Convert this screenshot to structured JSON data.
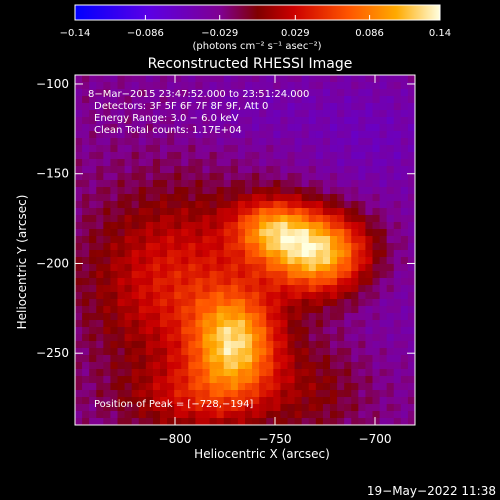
{
  "chart_data": {
    "type": "heatmap",
    "title": "Reconstructed RHESSI Image",
    "xlabel": "Heliocentric X (arcsec)",
    "ylabel": "Heliocentric Y (arcsec)",
    "xlim": [
      -850,
      -680
    ],
    "ylim": [
      -290,
      -95
    ],
    "xticks": [
      {
        "value": -800,
        "label": "−800"
      },
      {
        "value": -750,
        "label": "−750"
      },
      {
        "value": -700,
        "label": "−700"
      }
    ],
    "yticks": [
      {
        "value": -100,
        "label": "−100"
      },
      {
        "value": -150,
        "label": "−150"
      },
      {
        "value": -200,
        "label": "−200"
      },
      {
        "value": -250,
        "label": "−250"
      }
    ],
    "colorbar": {
      "range": [
        -0.14,
        0.14
      ],
      "ticks": [
        {
          "value": -0.14,
          "label": "−0.14"
        },
        {
          "value": -0.086,
          "label": "−0.086"
        },
        {
          "value": -0.029,
          "label": "−0.029"
        },
        {
          "value": 0.029,
          "label": "0.029"
        },
        {
          "value": 0.086,
          "label": "0.086"
        },
        {
          "value": 0.14,
          "label": "0.14"
        }
      ],
      "unit_label": "(photons cm⁻² s⁻¹ asec⁻²)"
    },
    "sources": [
      {
        "x": -728,
        "y": -194,
        "peak": 0.14,
        "sx": 18,
        "sy": 16
      },
      {
        "x": -752,
        "y": -180,
        "peak": 0.085,
        "sx": 14,
        "sy": 12
      },
      {
        "x": -770,
        "y": -245,
        "peak": 0.12,
        "sx": 15,
        "sy": 20
      },
      {
        "x": -800,
        "y": -210,
        "peak": 0.06,
        "sx": 30,
        "sy": 35
      },
      {
        "x": -790,
        "y": -275,
        "peak": 0.04,
        "sx": 25,
        "sy": 14
      },
      {
        "x": -730,
        "y": -270,
        "peak": 0.02,
        "sx": 20,
        "sy": 20
      },
      {
        "x": -700,
        "y": -130,
        "peak": -0.03,
        "sx": 25,
        "sy": 25
      },
      {
        "x": -690,
        "y": -220,
        "peak": -0.02,
        "sx": 20,
        "sy": 30
      },
      {
        "x": -760,
        "y": -115,
        "peak": -0.025,
        "sx": 30,
        "sy": 15
      }
    ],
    "background": -0.03,
    "annotations": {
      "time": "8−Mar−2015 23:47:52.000 to 23:51:24.000",
      "detectors": "Detectors: 3F 5F 6F 7F 8F 9F, Att 0",
      "energy": "Energy Range: 3.0 − 6.0 keV",
      "clean": "Clean     Total counts: 1.17E+04",
      "peak": "Position of Peak = [−728,−194]"
    },
    "grid": false
  },
  "footer": {
    "date": "19−May−2022 11:38"
  }
}
